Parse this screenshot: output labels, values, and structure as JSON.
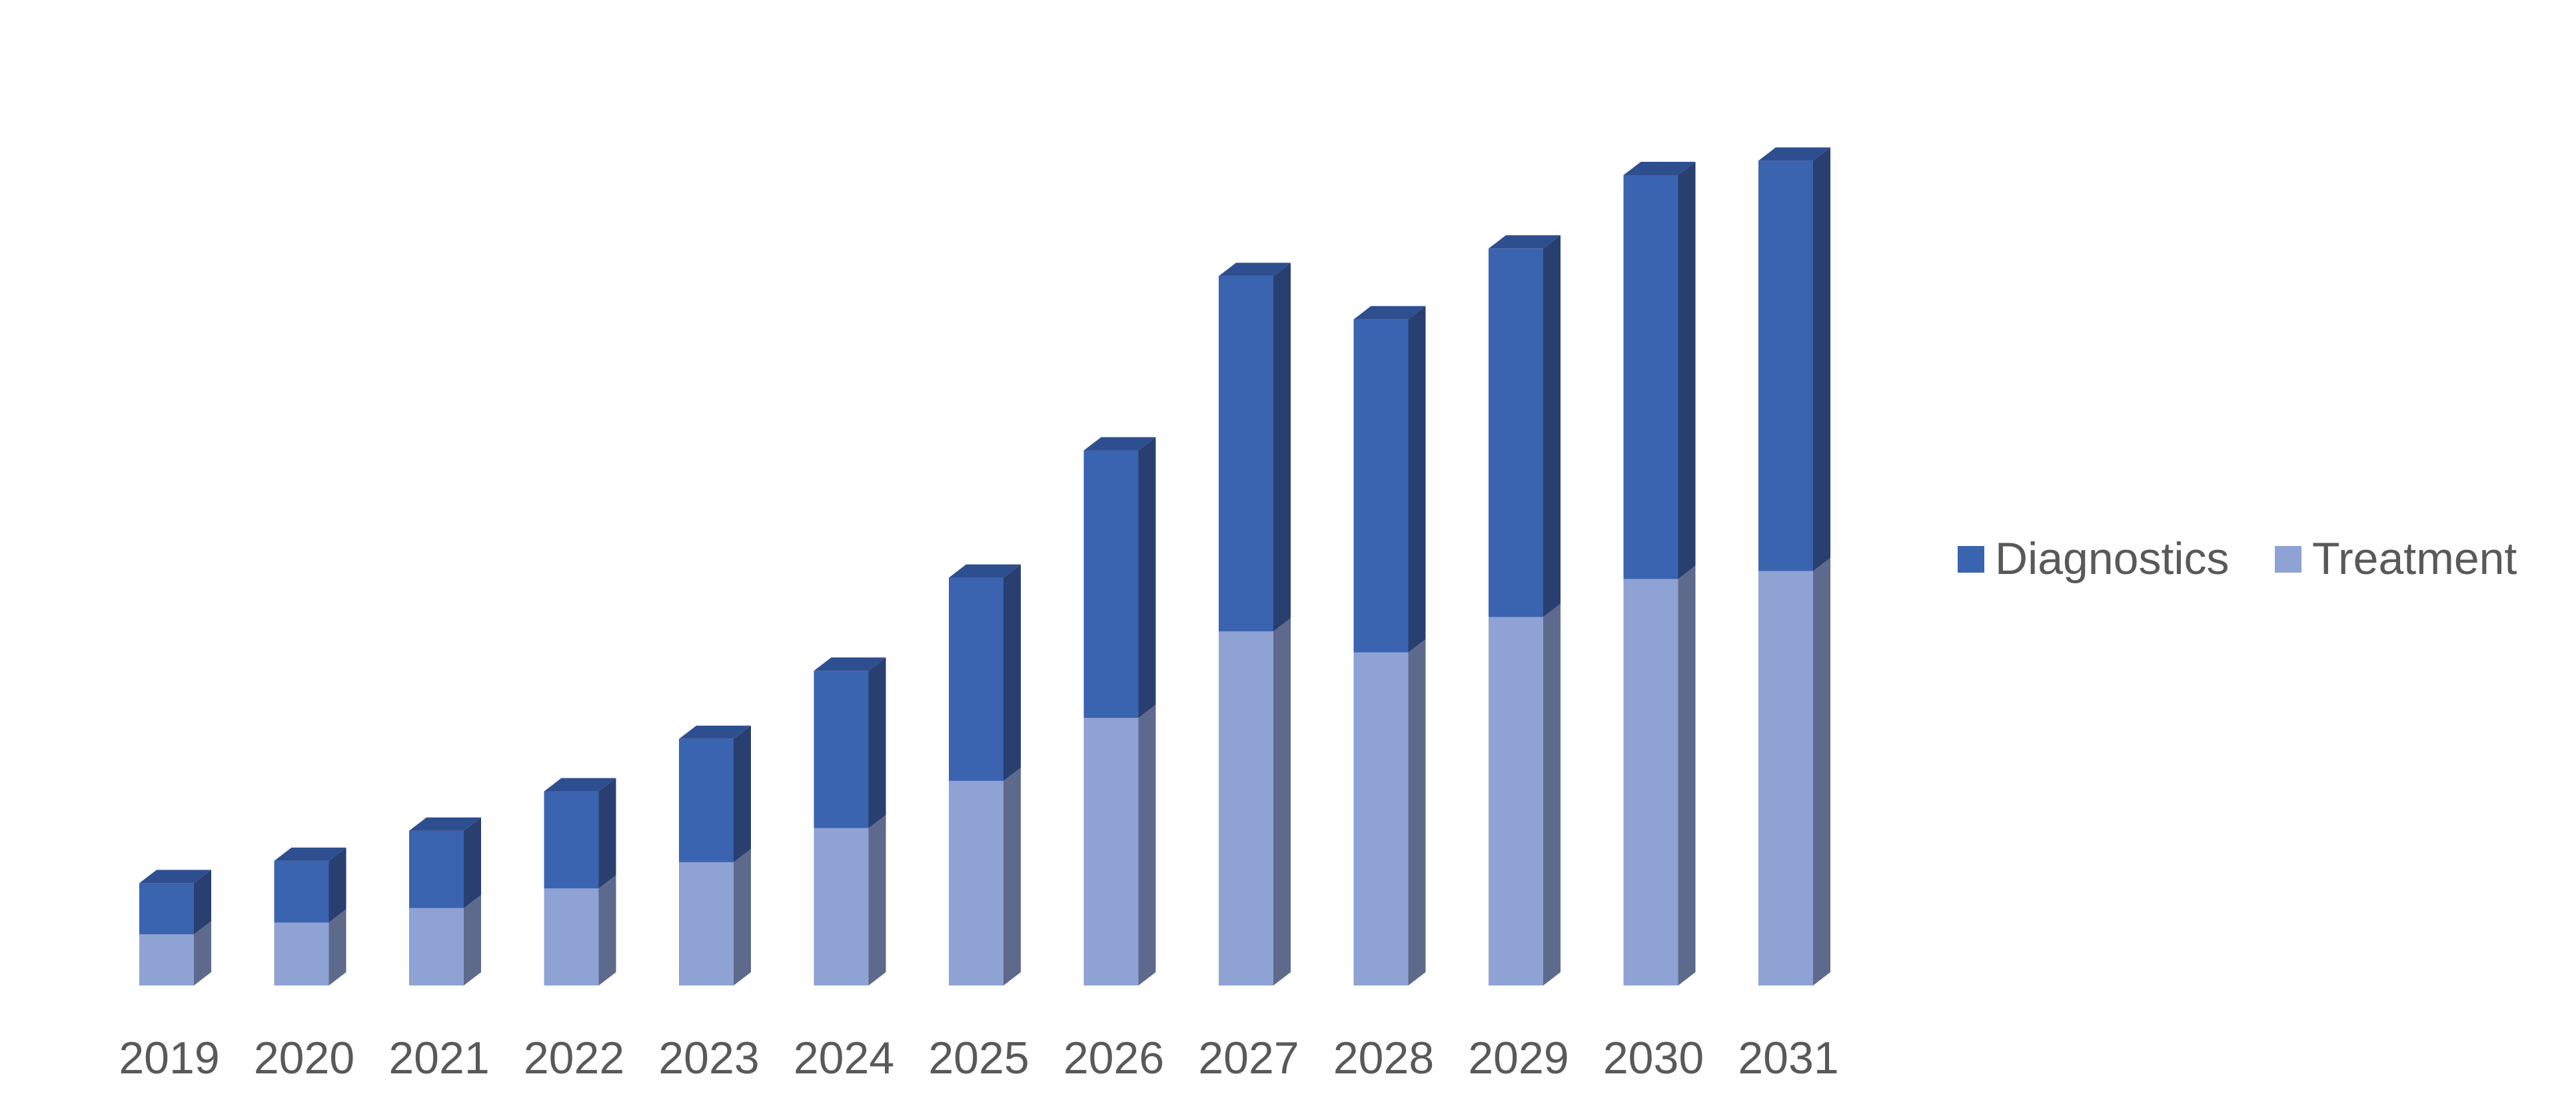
{
  "chart_data": {
    "type": "bar",
    "stacked": true,
    "style": "3d-column",
    "categories": [
      "2019",
      "2020",
      "2021",
      "2022",
      "2023",
      "2024",
      "2025",
      "2026",
      "2027",
      "2028",
      "2029",
      "2030",
      "2031"
    ],
    "series": [
      {
        "name": "Treatment",
        "color": "#8FA2D4",
        "side_color": "#5E6A8C",
        "values": [
          78,
          96,
          118,
          148,
          188,
          240,
          312,
          408,
          540,
          508,
          562,
          620,
          632
        ]
      },
      {
        "name": "Diagnostics",
        "color": "#3A63B0",
        "side_color": "#283F70",
        "top_color": "#2E4F8F",
        "values": [
          78,
          94,
          118,
          148,
          188,
          240,
          310,
          408,
          542,
          508,
          562,
          616,
          626
        ]
      }
    ],
    "title": "",
    "xlabel": "",
    "ylabel": "",
    "ylim": [
      0,
      1300
    ],
    "grid": false,
    "legend": {
      "position": "right",
      "order": [
        "Diagnostics",
        "Treatment"
      ]
    }
  }
}
